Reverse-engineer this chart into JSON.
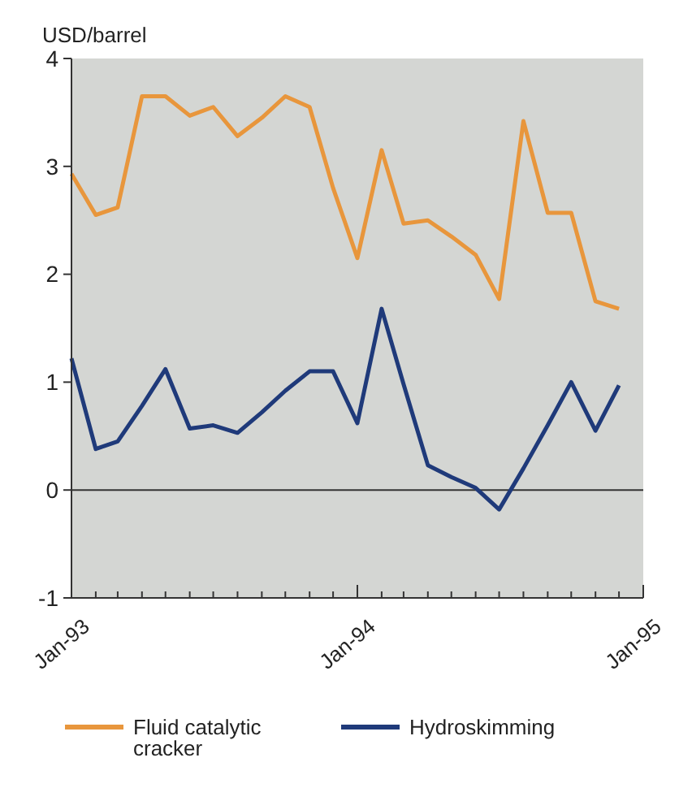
{
  "chart_data": {
    "type": "line",
    "ylabel": "USD/barrel",
    "x": [
      "1993-01",
      "1993-02",
      "1993-03",
      "1993-04",
      "1993-05",
      "1993-06",
      "1993-07",
      "1993-08",
      "1993-09",
      "1993-10",
      "1993-11",
      "1993-12",
      "1994-01",
      "1994-02",
      "1994-03",
      "1994-04",
      "1994-05",
      "1994-06",
      "1994-07",
      "1994-08",
      "1994-09",
      "1994-10",
      "1994-11",
      "1994-12"
    ],
    "series": [
      {
        "name": "Fluid catalytic cracker",
        "color": "#e8963c",
        "values": [
          2.93,
          2.55,
          2.62,
          3.65,
          3.65,
          3.47,
          3.55,
          3.28,
          3.45,
          3.65,
          3.55,
          2.8,
          2.15,
          3.15,
          2.47,
          2.5,
          2.35,
          2.18,
          1.77,
          3.42,
          2.57,
          2.57,
          1.75,
          1.68
        ]
      },
      {
        "name": "Hydroskimming",
        "color": "#1f3a7a",
        "values": [
          1.22,
          0.38,
          0.45,
          0.78,
          1.12,
          0.57,
          0.6,
          0.53,
          0.72,
          0.92,
          1.1,
          1.1,
          0.62,
          1.68,
          0.98,
          0.23,
          0.12,
          0.02,
          -0.18,
          0.2,
          0.6,
          1.0,
          0.55,
          0.97
        ]
      }
    ],
    "xlim": [
      "1993-01",
      "1995-01"
    ],
    "xticks": [
      {
        "value": "1993-01",
        "label": "Jan-93"
      },
      {
        "value": "1993-02",
        "label": null
      },
      {
        "value": "1993-03",
        "label": null
      },
      {
        "value": "1993-04",
        "label": null
      },
      {
        "value": "1993-05",
        "label": null
      },
      {
        "value": "1993-06",
        "label": null
      },
      {
        "value": "1993-07",
        "label": null
      },
      {
        "value": "1993-08",
        "label": null
      },
      {
        "value": "1993-09",
        "label": null
      },
      {
        "value": "1993-10",
        "label": null
      },
      {
        "value": "1993-11",
        "label": null
      },
      {
        "value": "1993-12",
        "label": null
      },
      {
        "value": "1994-01",
        "label": "Jan-94"
      },
      {
        "value": "1994-02",
        "label": null
      },
      {
        "value": "1994-03",
        "label": null
      },
      {
        "value": "1994-04",
        "label": null
      },
      {
        "value": "1994-05",
        "label": null
      },
      {
        "value": "1994-06",
        "label": null
      },
      {
        "value": "1994-07",
        "label": null
      },
      {
        "value": "1994-08",
        "label": null
      },
      {
        "value": "1994-09",
        "label": null
      },
      {
        "value": "1994-10",
        "label": null
      },
      {
        "value": "1994-11",
        "label": null
      },
      {
        "value": "1994-12",
        "label": null
      },
      {
        "value": "1995-01",
        "label": "Jan-95"
      }
    ],
    "ylim": [
      -1,
      4
    ],
    "yticks": [
      -1,
      0,
      1,
      2,
      3,
      4
    ],
    "ref_lines": [
      {
        "axis": "y",
        "value": 0,
        "color": "#333333"
      }
    ],
    "grid": false,
    "legend": "bottom",
    "marker": "none",
    "line_style": "solid"
  }
}
